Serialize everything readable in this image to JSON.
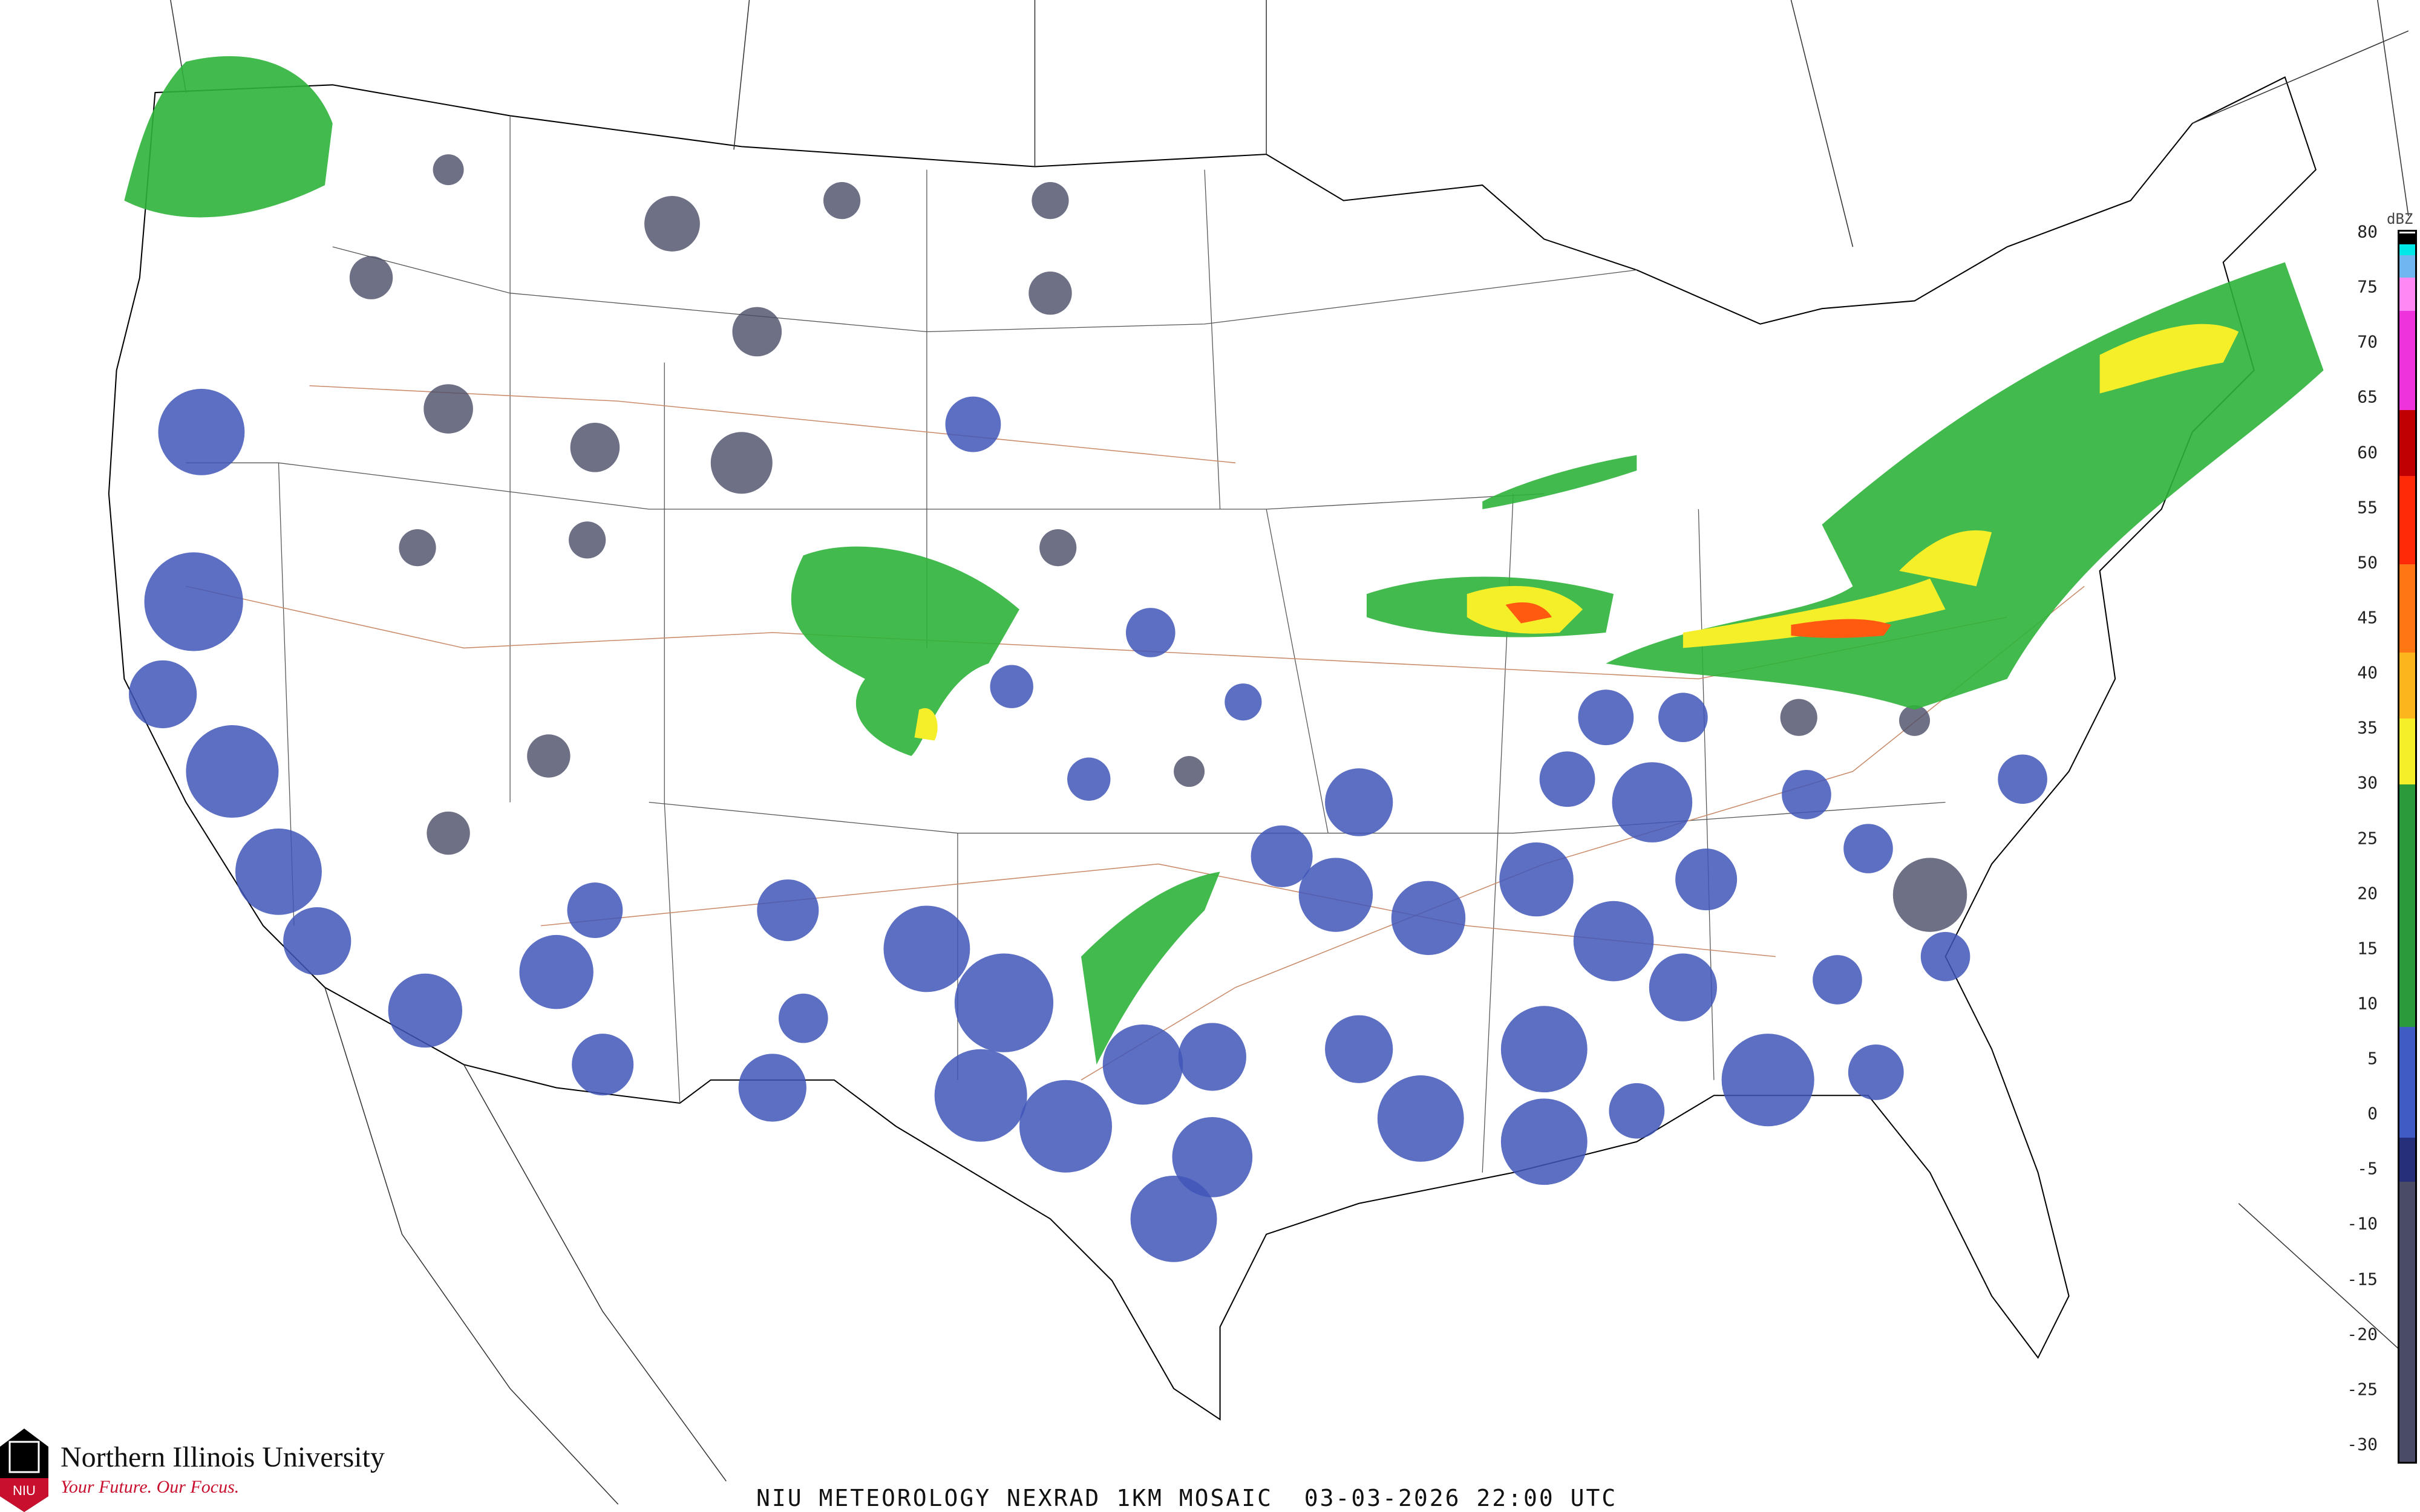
{
  "branding": {
    "university": "Northern Illinois University",
    "tagline": "Your Future. Our Focus.",
    "logo_text": "NIU"
  },
  "caption": "NIU METEOROLOGY NEXRAD 1KM MOSAIC  03-03-2026 22:00 UTC",
  "legend": {
    "unit": "dBZ",
    "ticks": [
      "80",
      "75",
      "70",
      "65",
      "60",
      "55",
      "50",
      "45",
      "40",
      "35",
      "30",
      "25",
      "20",
      "15",
      "10",
      "5",
      "0",
      "-5",
      "-10",
      "-15",
      "-20",
      "-25",
      "-30"
    ],
    "range": [
      -30,
      80
    ],
    "colors": [
      {
        "from": -32,
        "to": -6,
        "color": "#4a4c66"
      },
      {
        "from": -6,
        "to": -2,
        "color": "#26307a"
      },
      {
        "from": -2,
        "to": 8,
        "color": "#3f5bc4"
      },
      {
        "from": 8,
        "to": 30,
        "color": "#2a9a3a"
      },
      {
        "from": 30,
        "to": 36,
        "color": "#f5ef2a"
      },
      {
        "from": 36,
        "to": 42,
        "color": "#fdb51d"
      },
      {
        "from": 42,
        "to": 50,
        "color": "#ff7614"
      },
      {
        "from": 50,
        "to": 58,
        "color": "#ff2a08"
      },
      {
        "from": 58,
        "to": 64,
        "color": "#c00000"
      },
      {
        "from": 64,
        "to": 73,
        "color": "#ee33dd"
      },
      {
        "from": 73,
        "to": 76,
        "color": "#ff88f4"
      },
      {
        "from": 76,
        "to": 78,
        "color": "#6fb8ef"
      },
      {
        "from": 78,
        "to": 79,
        "color": "#00e8e8"
      },
      {
        "from": 79,
        "to": 80,
        "color": "#000000"
      }
    ]
  },
  "colors": {
    "weak_echo": "#3f56b8",
    "light_echo": "#4a4c66",
    "moderate": "#2fb33a",
    "heavy": "#f5ef2a",
    "intense": "#ff5a10",
    "border": "#000000",
    "road": "#c98a6a"
  }
}
